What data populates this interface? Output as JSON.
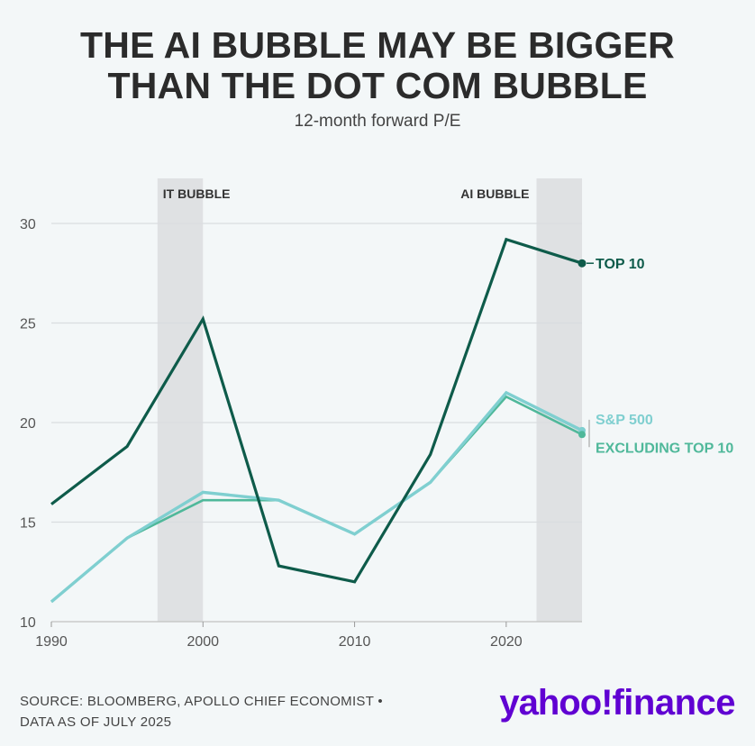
{
  "header": {
    "title_line1": "THE AI BUBBLE MAY BE BIGGER",
    "title_line2": "THAN THE DOT COM BUBBLE",
    "subtitle": "12-month forward P/E"
  },
  "footer": {
    "source_line1": "SOURCE: BLOOMBERG, APOLLO CHIEF ECONOMIST •",
    "source_line2": "DATA AS OF JULY 2025",
    "logo_part1": "yahoo!",
    "logo_part2": "finance"
  },
  "colors": {
    "background": "#f3f7f8",
    "grid": "#d9dde0",
    "shade": "#dfe1e3",
    "top10": "#0e5b4a",
    "sp500": "#7fcfd0",
    "excluding": "#4fb89a",
    "logo": "#6001d2"
  },
  "chart_data": {
    "type": "line",
    "xlim": [
      1990,
      2025
    ],
    "ylim": [
      10,
      30
    ],
    "x_ticks": [
      1990,
      2000,
      2010,
      2020
    ],
    "y_ticks": [
      10,
      15,
      20,
      25,
      30
    ],
    "grid": true,
    "shaded_periods": [
      {
        "label": "IT BUBBLE",
        "start": 1997,
        "end": 2000
      },
      {
        "label": "AI BUBBLE",
        "start": 2022,
        "end": 2025
      }
    ],
    "x": [
      1990,
      1995,
      2000,
      2005,
      2010,
      2015,
      2020,
      2025
    ],
    "series": [
      {
        "name": "TOP 10",
        "values": [
          15.9,
          18.8,
          25.2,
          12.8,
          12.0,
          18.4,
          29.2,
          28.0
        ]
      },
      {
        "name": "S&P 500",
        "values": [
          11.0,
          14.2,
          16.5,
          16.1,
          14.4,
          17.0,
          21.5,
          19.6
        ]
      },
      {
        "name": "EXCLUDING TOP 10",
        "values": [
          11.0,
          14.2,
          16.1,
          16.1,
          14.4,
          17.0,
          21.3,
          19.4
        ]
      }
    ]
  }
}
